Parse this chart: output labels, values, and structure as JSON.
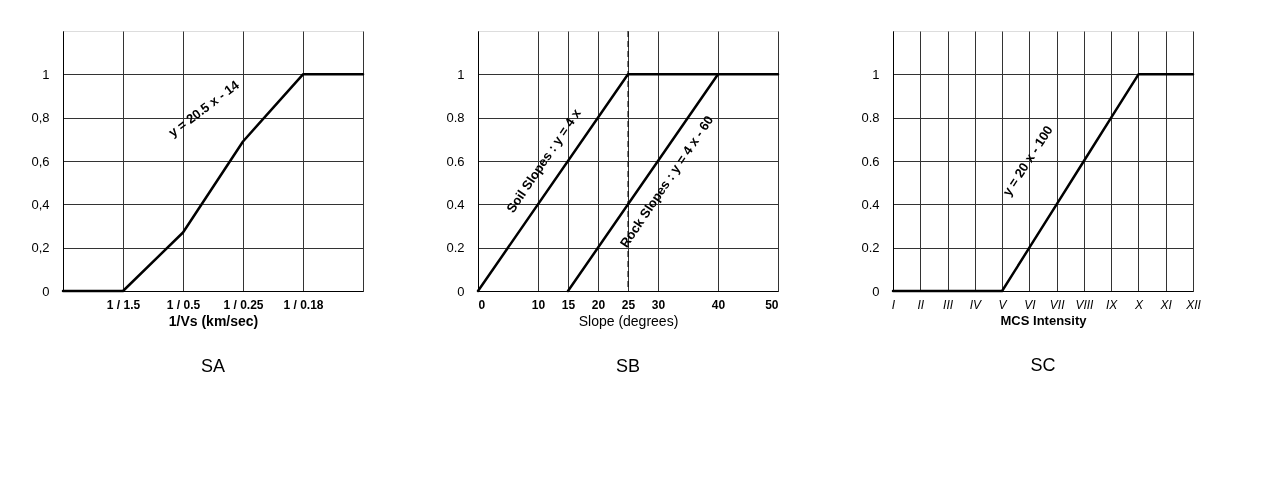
{
  "chart_data": [
    {
      "type": "line",
      "title": "SA",
      "xlabel": "1/Vs (km/sec)",
      "categories": [
        null,
        "1 / 1.5",
        "1 / 0.5",
        "1 / 0.25",
        "1 / 0.18",
        null
      ],
      "values": [
        0,
        0,
        0.27,
        0.69,
        1,
        1
      ],
      "color": "#000000",
      "ylim": [
        0,
        1.2
      ],
      "yticks": [
        0,
        {
          "value": 0.2,
          "label": "0,2"
        },
        {
          "value": 0.4,
          "label": "0,4"
        },
        {
          "value": 0.6,
          "label": "0,6"
        },
        {
          "value": 0.8,
          "label": "0,8"
        },
        1
      ],
      "grid": true,
      "annotations": [
        "y = 20.5 x - 14"
      ]
    },
    {
      "type": "line",
      "title": "SB",
      "xlabel": "Slope (degrees)",
      "series": [
        {
          "color": "#000000",
          "x": [
            0,
            25,
            50
          ],
          "values": [
            0,
            1,
            1
          ]
        },
        {
          "color": "#000000",
          "x": [
            15,
            40
          ],
          "values": [
            0,
            1
          ]
        }
      ],
      "xlim": [
        0,
        50
      ],
      "xticks": [
        0,
        10,
        15,
        20,
        25,
        30,
        40,
        50
      ],
      "ylim": [
        0,
        1.2
      ],
      "yticks": [
        0,
        0.2,
        0.4,
        0.6,
        0.8,
        1
      ],
      "grid": true,
      "ref_lines": [
        {
          "axis": "x",
          "value": 25,
          "color": "#000000",
          "line_style": "dashed"
        }
      ],
      "annotations": [
        "Soil Slopes : y = 4 x",
        "Rock Slopes : y = 4 x - 60"
      ]
    },
    {
      "type": "line",
      "title": "SC",
      "xlabel": "MCS Intensity",
      "categories": [
        "I",
        "II",
        "III",
        "IV",
        "V",
        "VI",
        "VII",
        "VIII",
        "IX",
        "X",
        "XI",
        "XII"
      ],
      "values": [
        0,
        0,
        0,
        0,
        0,
        0.2,
        0.4,
        0.6,
        0.8,
        1,
        1,
        1
      ],
      "color": "#000000",
      "ylim": [
        0,
        1.2
      ],
      "yticks": [
        0,
        0.2,
        0.4,
        0.6,
        0.8,
        1
      ],
      "grid": true,
      "annotations": [
        "y = 20 x - 100"
      ]
    }
  ]
}
